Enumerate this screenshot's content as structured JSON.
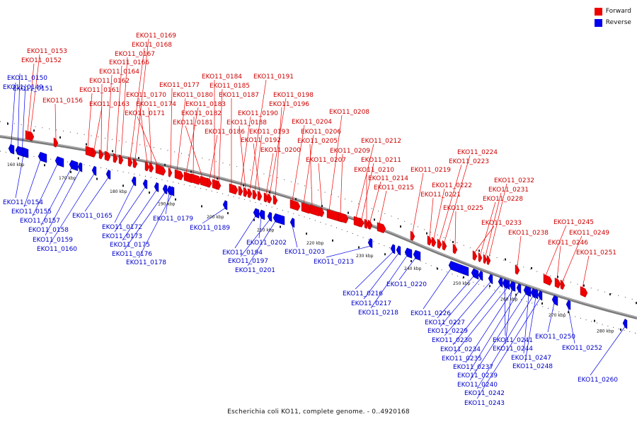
{
  "legend": {
    "forward": {
      "label": "Forward",
      "color": "#ee0000"
    },
    "reverse": {
      "label": "Reverse",
      "color": "#0000ee"
    }
  },
  "caption": "Escherichia coli KO11, complete genome. - 0..4920168",
  "axis_ticks": [
    "160 kbp",
    "170 kbp",
    "180 kbp",
    "190 kbp",
    "200 kbp",
    "210 kbp",
    "220 kbp",
    "230 kbp",
    "240 kbp",
    "250 kbp",
    "260 kbp",
    "270 kbp",
    "280 kbp"
  ],
  "forward_genes": [
    "EKO11_0153",
    "EKO11_0152",
    "EKO11_0156",
    "EKO11_0169",
    "EKO11_0168",
    "EKO11_0167",
    "EKO11_0166",
    "EKO11_0164",
    "EKO11_0162",
    "EKO11_0161",
    "EKO11_0163",
    "EKO11_0170",
    "EKO11_0174",
    "EKO11_0171",
    "EKO11_0177",
    "EKO11_0180",
    "EKO11_0183",
    "EKO11_0182",
    "EKO11_0181",
    "EKO11_0184",
    "EKO11_0185",
    "EKO11_0187",
    "EKO11_0186",
    "EKO11_0191",
    "EKO11_0198",
    "EKO11_0196",
    "EKO11_0190",
    "EKO11_0188",
    "EKO11_0193",
    "EKO11_0192",
    "EKO11_0200",
    "EKO11_0208",
    "EKO11_0204",
    "EKO11_0206",
    "EKO11_0205",
    "EKO11_0209",
    "EKO11_0207",
    "EKO11_0212",
    "EKO11_0211",
    "EKO11_0210",
    "EKO11_0214",
    "EKO11_0215",
    "EKO11_0224",
    "EKO11_0223",
    "EKO11_0219",
    "EKO11_0222",
    "EKO11_0221",
    "EKO11_0225",
    "EKO11_0232",
    "EKO11_0231",
    "EKO11_0228",
    "EKO11_0233",
    "EKO11_0245",
    "EKO11_0238",
    "EKO11_0249",
    "EKO11_0246",
    "EKO11_0251"
  ],
  "reverse_genes": [
    "EKO11_0151",
    "EKO11_0150",
    "EKO11_0149",
    "EKO11_0154",
    "EKO11_0155",
    "EKO11_0157",
    "EKO11_0158",
    "EKO11_0159",
    "EKO11_0160",
    "EKO11_0165",
    "EKO11_0172",
    "EKO11_0173",
    "EKO11_0175",
    "EKO11_0176",
    "EKO11_0178",
    "EKO11_0179",
    "EKO11_0189",
    "EKO11_0202",
    "EKO11_0194",
    "EKO11_0197",
    "EKO11_0201",
    "EKO11_0203",
    "EKO11_0213",
    "EKO11_0216",
    "EKO11_0217",
    "EKO11_0218",
    "EKO11_0220",
    "EKO11_0226",
    "EKO11_0227",
    "EKO11_0229",
    "EKO11_0230",
    "EKO11_0234",
    "EKO11_0235",
    "EKO11_0237",
    "EKO11_0239",
    "EKO11_0240",
    "EKO11_0242",
    "EKO11_0243",
    "EKO11_0241",
    "EKO11_0244",
    "EKO11_0247",
    "EKO11_0248",
    "EKO11_0250",
    "EKO11_0252",
    "EKO11_0260"
  ]
}
